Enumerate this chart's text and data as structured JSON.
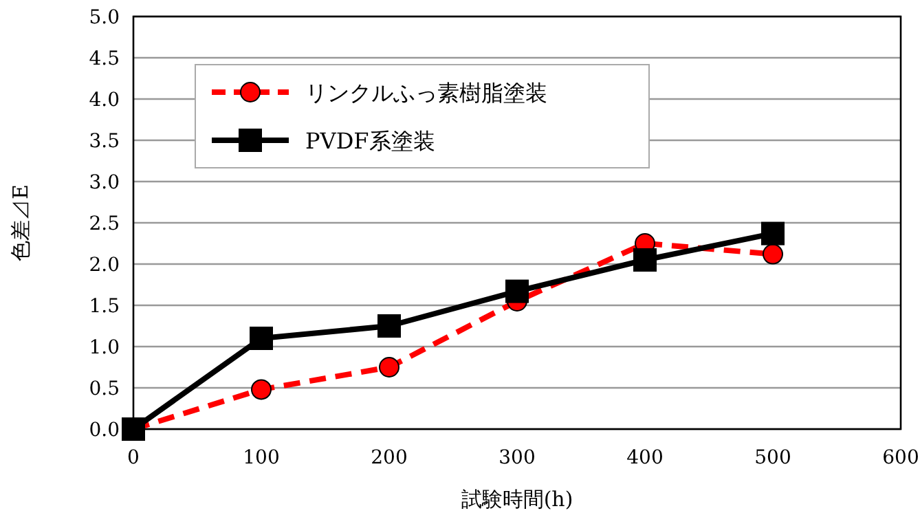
{
  "chart_data": {
    "type": "line",
    "xlabel": "試験時間(h)",
    "ylabel": "色差⊿E",
    "x": [
      0,
      100,
      200,
      300,
      400,
      500
    ],
    "series": [
      {
        "name": "リンクルふっ素樹脂塗装",
        "color": "#ff0000",
        "values": [
          0,
          0.48,
          0.75,
          1.55,
          2.25,
          2.12
        ],
        "marker": "circle",
        "line_style": "dashed"
      },
      {
        "name": "PVDF系塗装",
        "color": "#000000",
        "values": [
          0,
          1.1,
          1.25,
          1.67,
          2.05,
          2.37
        ],
        "marker": "square",
        "line_style": "solid"
      }
    ],
    "xlim": [
      0,
      600
    ],
    "xticks": [
      0,
      100,
      200,
      300,
      400,
      500,
      600
    ],
    "ylim": [
      0,
      5
    ],
    "yticks": [
      {
        "value": 0,
        "label": "0.0"
      },
      {
        "value": 0.5,
        "label": "0.5"
      },
      {
        "value": 1,
        "label": "1.0"
      },
      {
        "value": 1.5,
        "label": "1.5"
      },
      {
        "value": 2,
        "label": "2.0"
      },
      {
        "value": 2.5,
        "label": "2.5"
      },
      {
        "value": 3,
        "label": "3.0"
      },
      {
        "value": 3.5,
        "label": "3.5"
      },
      {
        "value": 4,
        "label": "4.0"
      },
      {
        "value": 4.5,
        "label": "4.5"
      },
      {
        "value": 5,
        "label": "5.0"
      }
    ],
    "grid": "y",
    "legend": "top left"
  }
}
